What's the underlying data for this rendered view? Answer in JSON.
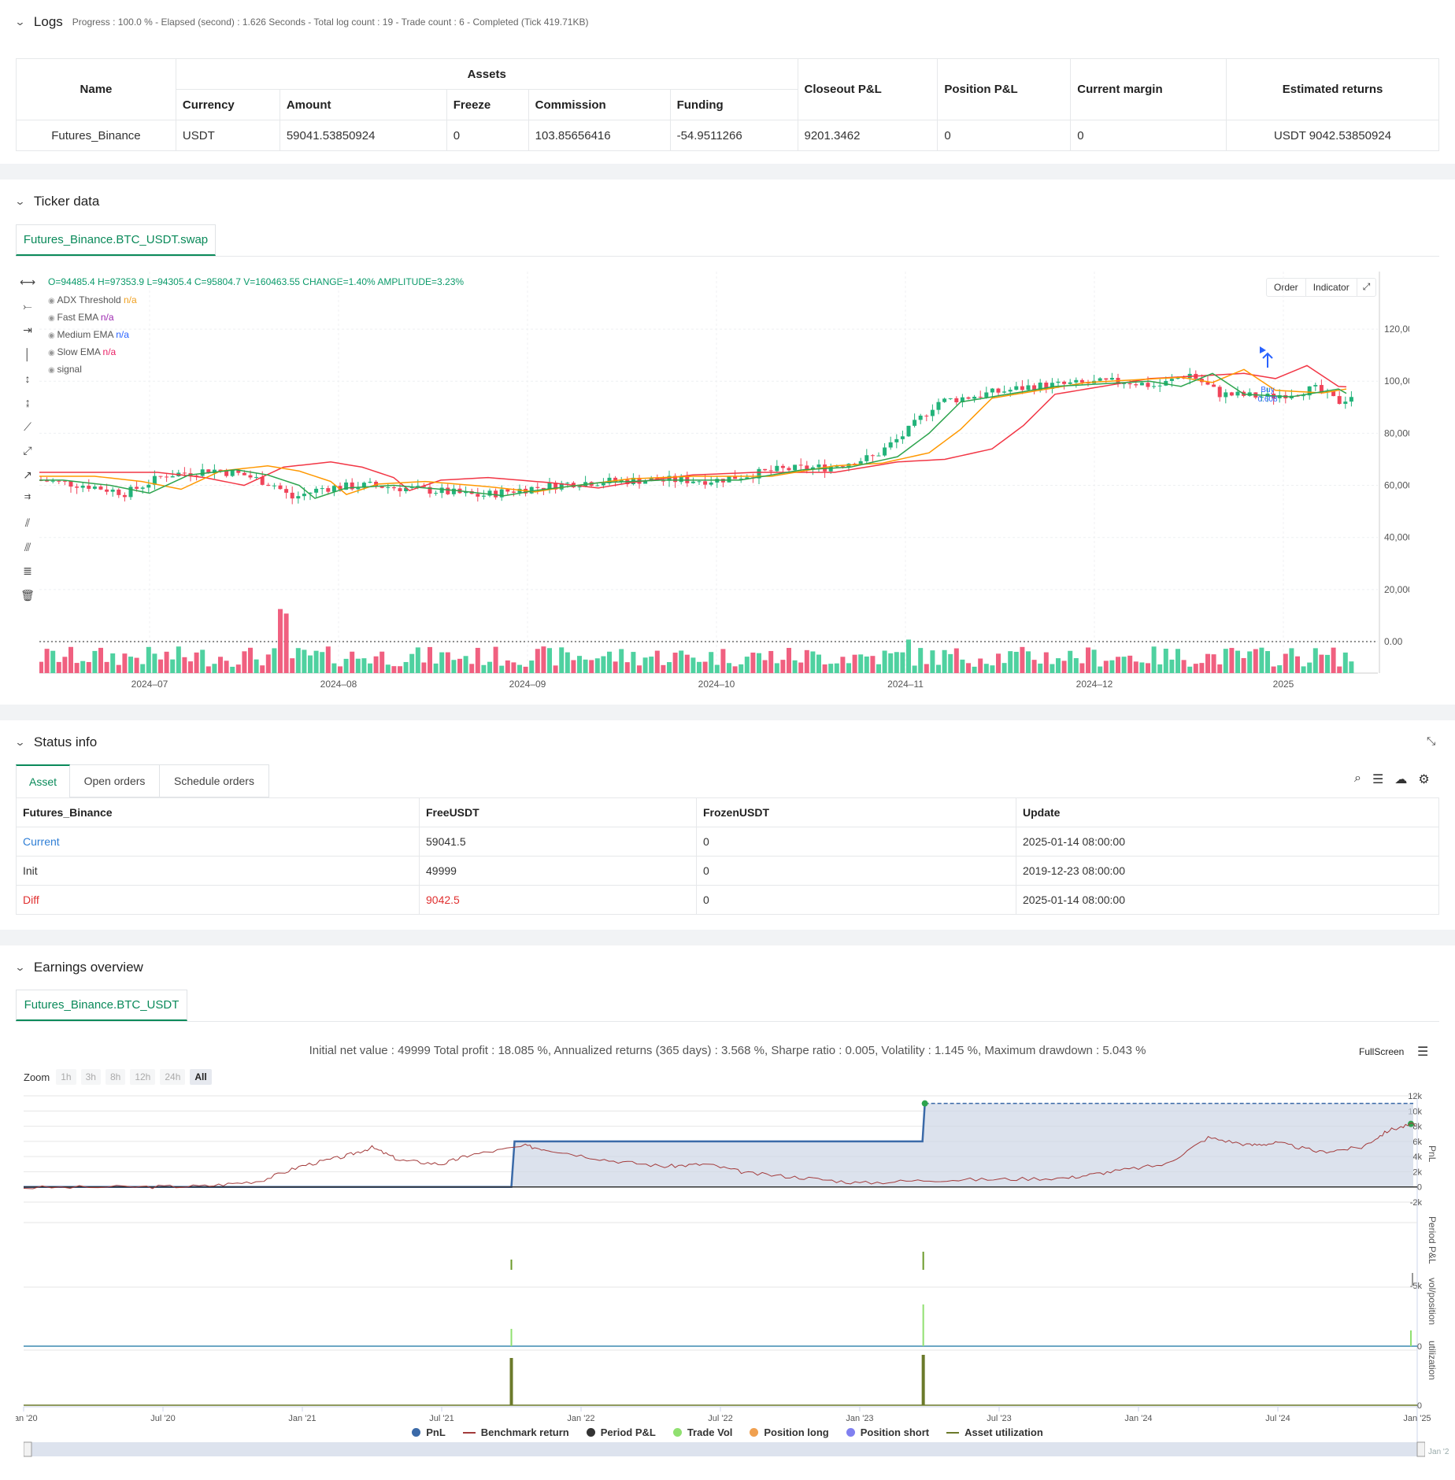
{
  "logs": {
    "title": "Logs",
    "summary": "Progress : 100.0 % - Elapsed (second) : 1.626  Seconds - Total log count : 19 - Trade count : 6 - Completed (Tick 419.71KB)",
    "headers": {
      "name": "Name",
      "assets": "Assets",
      "currency": "Currency",
      "amount": "Amount",
      "freeze": "Freeze",
      "commission": "Commission",
      "funding": "Funding",
      "closeout": "Closeout P&L",
      "position": "Position P&L",
      "margin": "Current margin",
      "returns": "Estimated returns"
    },
    "row": {
      "name": "Futures_Binance",
      "currency": "USDT",
      "amount": "59041.53850924",
      "freeze": "0",
      "commission": "103.85656416",
      "funding": "-54.9511266",
      "closeout": "9201.3462",
      "position": "0",
      "margin": "0",
      "returns": "USDT 9042.53850924"
    }
  },
  "ticker": {
    "title": "Ticker data",
    "tab": "Futures_Binance.BTC_USDT.swap",
    "ohlc": "O=94485.4 H=97353.9 L=94305.4 C=95804.7 V=160463.55 CHANGE=1.40% AMPLITUDE=3.23%",
    "indicators": [
      {
        "name": "ADX Threshold",
        "value": "n/a",
        "color": "#f0a020"
      },
      {
        "name": "Fast EMA",
        "value": "n/a",
        "color": "#9c27b0"
      },
      {
        "name": "Medium EMA",
        "value": "n/a",
        "color": "#2962ff"
      },
      {
        "name": "Slow EMA",
        "value": "n/a",
        "color": "#e91e63"
      },
      {
        "name": "signal",
        "value": "",
        "color": "#333"
      }
    ],
    "buttons": {
      "order": "Order",
      "indicator": "Indicator"
    },
    "y_ticks": [
      "120,000.00",
      "100,000.00",
      "80,000.00",
      "60,000.00",
      "40,000.00",
      "20,000.00",
      "0.00"
    ],
    "x_ticks": [
      "2024–07",
      "2024–08",
      "2024–09",
      "2024–10",
      "2024–11",
      "2024–12",
      "2025"
    ],
    "buy_label": "Buy",
    "buy_size": "0.608"
  },
  "status": {
    "title": "Status info",
    "tabs": [
      "Asset",
      "Open orders",
      "Schedule orders"
    ],
    "headers": [
      "Futures_Binance",
      "FreeUSDT",
      "FrozenUSDT",
      "Update"
    ],
    "rows": [
      {
        "label": "Current",
        "free": "59041.5",
        "frozen": "0",
        "update": "2025-01-14 08:00:00"
      },
      {
        "label": "Init",
        "free": "49999",
        "frozen": "0",
        "update": "2019-12-23 08:00:00"
      },
      {
        "label": "Diff",
        "free": "9042.5",
        "frozen": "0",
        "update": "2025-01-14 08:00:00"
      }
    ]
  },
  "earnings": {
    "title": "Earnings overview",
    "tab": "Futures_Binance.BTC_USDT",
    "summary": "Initial net value : 49999 Total profit : 18.085 %, Annualized returns (365 days) : 3.568 %, Sharpe ratio : 0.005, Volatility : 1.145 %, Maximum drawdown : 5.043 %",
    "fullscreen": "FullScreen",
    "zoom_label": "Zoom",
    "zoom_buttons": [
      "1h",
      "3h",
      "8h",
      "12h",
      "24h",
      "All"
    ],
    "pnl_ticks": [
      "12k",
      "10k",
      "8k",
      "6k",
      "4k",
      "2k",
      "0",
      "-2k"
    ],
    "panel_labels": [
      "PnL",
      "Period P&L",
      "vol/position",
      "utilization"
    ],
    "period_tick": "-5k",
    "zero": "0",
    "x_ticks": [
      "Jan '20",
      "Jul '20",
      "Jan '21",
      "Jul '21",
      "Jan '22",
      "Jul '22",
      "Jan '23",
      "Jul '23",
      "Jan '24",
      "Jul '24",
      "Jan '25"
    ],
    "legend": [
      {
        "name": "PnL",
        "color": "#3b6aa8",
        "shape": "dot"
      },
      {
        "name": "Benchmark return",
        "color": "#a33b3b",
        "shape": "line"
      },
      {
        "name": "Period P&L",
        "color": "#333333",
        "shape": "dot"
      },
      {
        "name": "Trade Vol",
        "color": "#90e070",
        "shape": "dot"
      },
      {
        "name": "Position long",
        "color": "#f0a050",
        "shape": "dot"
      },
      {
        "name": "Position short",
        "color": "#8080f0",
        "shape": "dot"
      },
      {
        "name": "Asset utilization",
        "color": "#6b7a2a",
        "shape": "line"
      }
    ]
  },
  "chart_data": [
    {
      "type": "candlestick",
      "title": "",
      "y_range": [
        0,
        130000
      ],
      "x_range": [
        "2024-06",
        "2025-01"
      ],
      "ema_fast_approx": [
        62000,
        63000,
        66000,
        58000,
        60000,
        62000,
        62000,
        70000,
        90000,
        98000,
        99000,
        96000,
        95000
      ],
      "ema_medium_approx": [
        63000,
        62000,
        65000,
        60000,
        59000,
        61000,
        62000,
        66000,
        82000,
        92000,
        97000,
        97000,
        96000
      ],
      "ema_slow_approx": [
        65000,
        63000,
        64000,
        62000,
        60000,
        61000,
        62000,
        64000,
        72000,
        85000,
        92000,
        94000,
        94000
      ]
    },
    {
      "type": "line",
      "title": "",
      "series": [
        {
          "name": "PnL",
          "values": [
            0,
            0,
            0,
            0,
            0,
            6000,
            6000,
            6000,
            11000,
            11000,
            11000
          ]
        },
        {
          "name": "Benchmark return"
        }
      ],
      "categories": [
        "Jan '20",
        "Jul '20",
        "Jan '21",
        "Jul '21",
        "Jan '22",
        "Jul '22",
        "Jan '23",
        "Jul '23",
        "Jan '24",
        "Jul '24",
        "Jan '25"
      ],
      "y_range": [
        -2000,
        12000
      ]
    }
  ]
}
